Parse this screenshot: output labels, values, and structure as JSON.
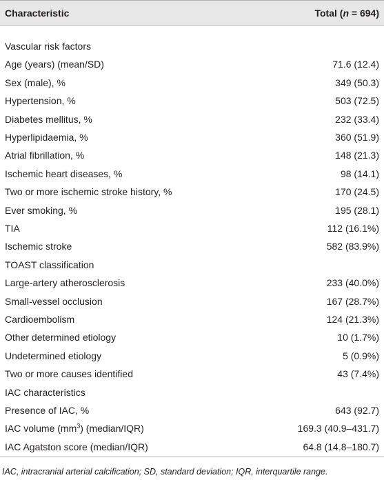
{
  "header": {
    "characteristic": "Characteristic",
    "total": [
      "Total (",
      "n",
      " = 694)"
    ]
  },
  "table": {
    "rows": [
      [
        "Vascular risk factors"
      ],
      [
        "Age (years) (mean/SD)",
        "71.6 (12.4)"
      ],
      [
        "Sex (male), %",
        "349 (50.3)"
      ],
      [
        "Hypertension, %",
        "503 (72.5)"
      ],
      [
        "Diabetes mellitus, %",
        "232 (33.4)"
      ],
      [
        "Hyperlipidaemia, %",
        "360 (51.9)"
      ],
      [
        "Atrial fibrillation, %",
        "148 (21.3)"
      ],
      [
        "Ischemic heart diseases, %",
        "98 (14.1)"
      ],
      [
        "Two or more ischemic stroke history, %",
        "170 (24.5)"
      ],
      [
        "Ever smoking, %",
        "195 (28.1)"
      ],
      [
        "TIA",
        "112 (16.1%)"
      ],
      [
        "Ischemic stroke",
        "582 (83.9%)"
      ],
      [
        "TOAST classification"
      ],
      [
        "Large-artery atherosclerosis",
        "233 (40.0%)"
      ],
      [
        "Small-vessel occlusion",
        "167 (28.7%)"
      ],
      [
        "Cardioembolism",
        "124 (21.3%)"
      ],
      [
        "Other determined etiology",
        "10 (1.7%)"
      ],
      [
        "Undetermined etiology",
        "5 (0.9%)"
      ],
      [
        "Two or more causes identified",
        "43 (7.4%)"
      ],
      [
        "IAC characteristics"
      ],
      [
        "Presence of IAC, %",
        "643 (92.7)"
      ],
      [
        [
          "IAC volume (mm",
          "3",
          ") (median/IQR)"
        ],
        "169.3 (40.9–431.7)"
      ],
      [
        "IAC Agatston score (median/IQR)",
        "64.8 (14.8–180.7)"
      ]
    ]
  },
  "footnote": "IAC, intracranial arterial calcification; SD, standard deviation; IQR, interquartile range."
}
